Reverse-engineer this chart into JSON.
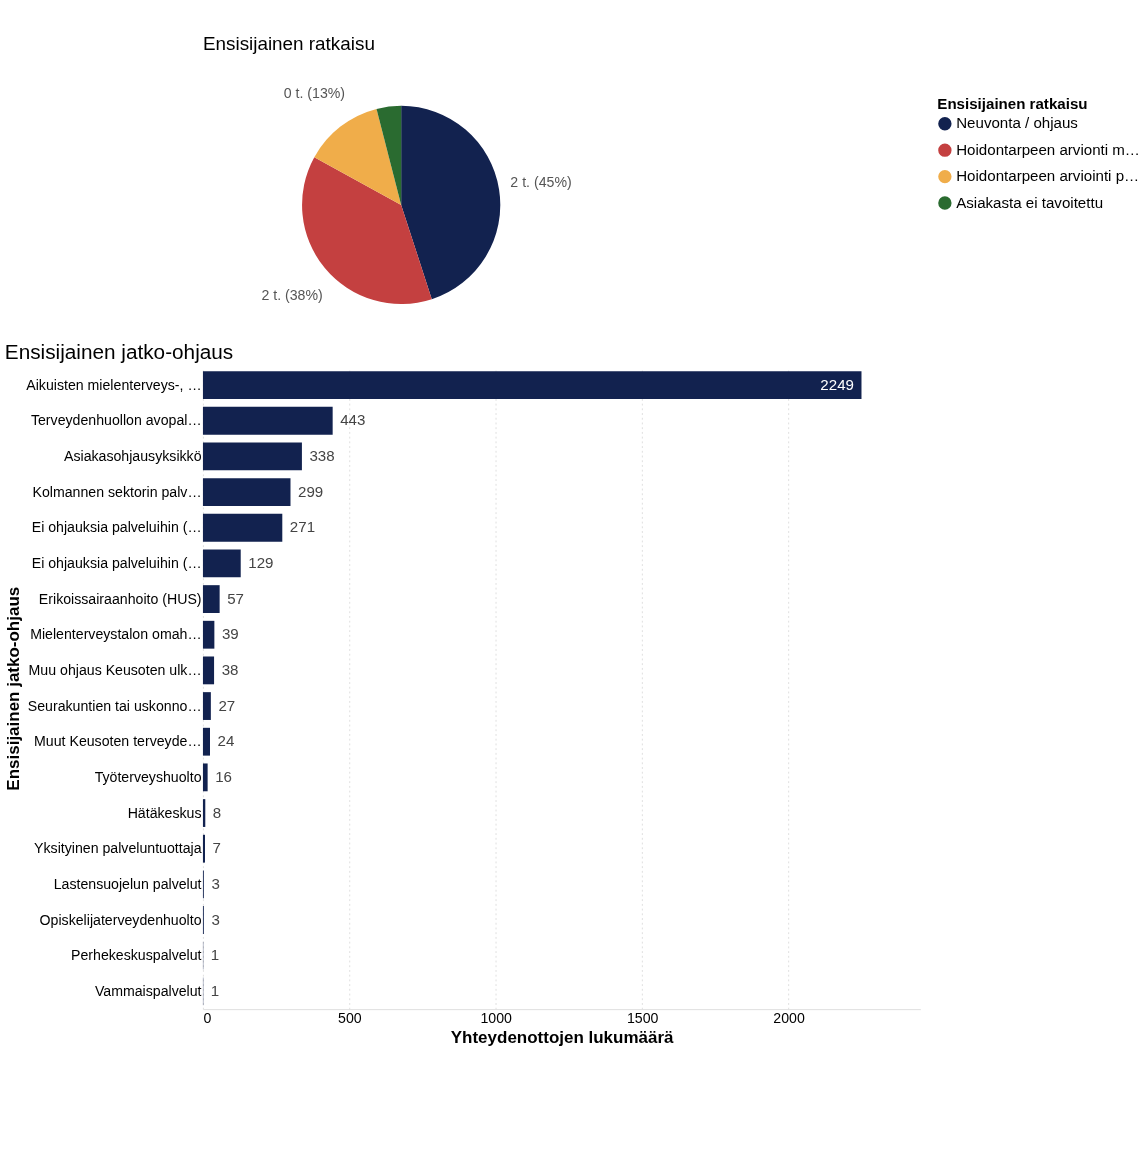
{
  "chart_data": [
    {
      "type": "pie",
      "title": "Ensisijainen ratkaisu",
      "legend_title": "Ensisijainen ratkaisu",
      "legend": "right",
      "categories": [
        "Neuvonta / ohjaus",
        "Hoidontarpeen arvionti m…",
        "Hoidontarpeen arviointi p…",
        "Asiakasta ei tavoitettu"
      ],
      "values": [
        45,
        38,
        13,
        4
      ],
      "value_labels": [
        "2 t. (45%)",
        "2 t. (38%)",
        "0 t. (13%)",
        null
      ],
      "colors": [
        "#12224f",
        "#c44040",
        "#f0ad4a",
        "#2a6b30"
      ]
    },
    {
      "type": "bar",
      "orientation": "horizontal",
      "title": "Ensisijainen jatko-ohjaus",
      "xlabel": "Yhteydenottojen lukumäärä",
      "ylabel": "Ensisijainen jatko-ohjaus",
      "categories": [
        "Aikuisten mielenterveys-, …",
        "Terveydenhuollon avopal…",
        "Asiakasohjausyksikkö",
        "Kolmannen sektorin palv…",
        "Ei ohjauksia palveluihin (…",
        "Ei ohjauksia palveluihin (…",
        "Erikoissairaanhoito (HUS)",
        "Mielenterveystalon omah…",
        "Muu ohjaus Keusoten ulk…",
        "Seurakuntien tai uskonno…",
        "Muut Keusoten terveyde…",
        "Työterveyshuolto",
        "Hätäkeskus",
        "Yksityinen palveluntuottaja",
        "Lastensuojelun palvelut",
        "Opiskelijaterveydenhuolto",
        "Perhekeskuspalvelut",
        "Vammaispalvelut"
      ],
      "values": [
        2249,
        443,
        338,
        299,
        271,
        129,
        57,
        39,
        38,
        27,
        24,
        16,
        8,
        7,
        3,
        3,
        1,
        1
      ],
      "color": "#12224f",
      "data_labels": true,
      "xlim": [
        0,
        2450
      ],
      "xticks": [
        0,
        500,
        1000,
        1500,
        2000
      ],
      "grid": "x"
    }
  ]
}
